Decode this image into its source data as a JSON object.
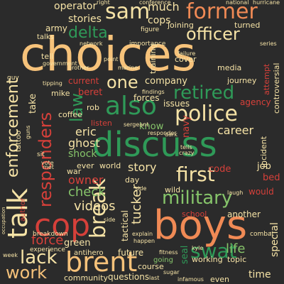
{
  "palette": {
    "background": "#2b2b2b",
    "cream": "#f6e3a6",
    "orange": "#f08a55",
    "red": "#d6403a",
    "green": "#2f9a58",
    "lightgreen": "#86c46a",
    "peach": "#f7b779"
  },
  "words": [
    {
      "text": "choices",
      "size": 66,
      "color": "#f6c27a"
    },
    {
      "text": "discuss",
      "size": 48,
      "color": "#2f9a58"
    },
    {
      "text": "boys",
      "size": 56,
      "color": "#f08a55"
    },
    {
      "text": "brent",
      "size": 38,
      "color": "#f6c27a"
    },
    {
      "text": "cop",
      "size": 44,
      "color": "#d6403a"
    },
    {
      "text": "talk",
      "size": 38,
      "color": "#f6e3a6"
    },
    {
      "text": "sam",
      "size": 30,
      "color": "#f6e3a6"
    },
    {
      "text": "former",
      "size": 30,
      "color": "#f08a55"
    },
    {
      "text": "also",
      "size": 36,
      "color": "#2f9a58"
    },
    {
      "text": "police",
      "size": 30,
      "color": "#f6e3a6"
    },
    {
      "text": "retired",
      "size": 26,
      "color": "#2f9a58"
    },
    {
      "text": "officer",
      "size": 24,
      "color": "#f6e3a6"
    },
    {
      "text": "military",
      "size": 26,
      "color": "#86c46a"
    },
    {
      "text": "first",
      "size": 28,
      "color": "#f6e3a6"
    },
    {
      "text": "break",
      "size": 30,
      "color": "#f6e3a6"
    },
    {
      "text": "swat",
      "size": 28,
      "color": "#2f9a58"
    },
    {
      "text": "delta",
      "size": 22,
      "color": "#2f9a58"
    },
    {
      "text": "enforcement",
      "size": 22,
      "color": "#f6e3a6"
    },
    {
      "text": "responders",
      "size": 24,
      "color": "#d6403a"
    },
    {
      "text": "one",
      "size": 24,
      "color": "#f6e3a6"
    },
    {
      "text": "lack",
      "size": 26,
      "color": "#f6e3a6"
    },
    {
      "text": "work",
      "size": 24,
      "color": "#f6c27a"
    },
    {
      "text": "law",
      "size": 24,
      "color": "#2f9a58"
    },
    {
      "text": "tucker",
      "size": 18,
      "color": "#f6e3a6"
    },
    {
      "text": "videos",
      "size": 18,
      "color": "#f6e3a6"
    },
    {
      "text": "check",
      "size": 18,
      "color": "#86c46a"
    },
    {
      "text": "force",
      "size": 18,
      "color": "#d6403a"
    },
    {
      "text": "owner",
      "size": 16,
      "color": "#d6403a"
    },
    {
      "text": "career",
      "size": 16,
      "color": "#f6e3a6"
    },
    {
      "text": "story",
      "size": 16,
      "color": "#f6e3a6"
    },
    {
      "text": "life",
      "size": 18,
      "color": "#86c46a"
    },
    {
      "text": "ghost",
      "size": 16,
      "color": "#f6e3a6"
    },
    {
      "text": "eric",
      "size": 16,
      "color": "#f6e3a6"
    },
    {
      "text": "much",
      "size": 16,
      "color": "#f6e3a6"
    },
    {
      "text": "cops",
      "size": 14,
      "color": "#f6e3a6"
    },
    {
      "text": "operator",
      "size": 14,
      "color": "#f6e3a6"
    },
    {
      "text": "stories",
      "size": 14,
      "color": "#f6e3a6"
    },
    {
      "text": "army",
      "size": 12,
      "color": "#f6e3a6"
    },
    {
      "text": "company",
      "size": 13,
      "color": "#f6e3a6"
    },
    {
      "text": "know",
      "size": 13,
      "color": "#86c46a"
    },
    {
      "text": "beret",
      "size": 13,
      "color": "#d6403a"
    },
    {
      "text": "current",
      "size": 12,
      "color": "#d6403a"
    },
    {
      "text": "shock",
      "size": 14,
      "color": "#86c46a"
    },
    {
      "text": "take",
      "size": 13,
      "color": "#f6e3a6"
    },
    {
      "text": "code",
      "size": 13,
      "color": "#d6403a"
    },
    {
      "text": "job",
      "size": 13,
      "color": "#f6e3a6"
    },
    {
      "text": "bed",
      "size": 13,
      "color": "#d6403a"
    },
    {
      "text": "would",
      "size": 12,
      "color": "#d6403a"
    },
    {
      "text": "another",
      "size": 12,
      "color": "#f6e3a6"
    },
    {
      "text": "special",
      "size": 14,
      "color": "#f6e3a6"
    },
    {
      "text": "time",
      "size": 14,
      "color": "#f6e3a6"
    },
    {
      "text": "seal",
      "size": 13,
      "color": "#2f9a58"
    },
    {
      "text": "green",
      "size": 13,
      "color": "#f6e3a6"
    },
    {
      "text": "tactical",
      "size": 12,
      "color": "#f6e3a6"
    },
    {
      "text": "future",
      "size": 12,
      "color": "#f6e3a6"
    },
    {
      "text": "questions",
      "size": 12,
      "color": "#f6e3a6"
    },
    {
      "text": "community",
      "size": 11,
      "color": "#f6e3a6"
    },
    {
      "text": "working",
      "size": 11,
      "color": "#f6e3a6"
    },
    {
      "text": "topic",
      "size": 11,
      "color": "#f6e3a6"
    },
    {
      "text": "navy",
      "size": 13,
      "color": "#d6403a"
    },
    {
      "text": "agency",
      "size": 12,
      "color": "#d6403a"
    },
    {
      "text": "forces",
      "size": 12,
      "color": "#f6e3a6"
    },
    {
      "text": "issues",
      "size": 12,
      "color": "#f6e3a6"
    },
    {
      "text": "journey",
      "size": 11,
      "color": "#f6e3a6"
    },
    {
      "text": "controversial",
      "size": 11,
      "color": "#f6e3a6"
    },
    {
      "text": "incident",
      "size": 11,
      "color": "#f6e3a6"
    },
    {
      "text": "attempt",
      "size": 11,
      "color": "#d6403a"
    },
    {
      "text": "media",
      "size": 11,
      "color": "#f6e3a6"
    },
    {
      "text": "cover",
      "size": 11,
      "color": "#f6e3a6"
    },
    {
      "text": "turned",
      "size": 11,
      "color": "#f6e3a6"
    },
    {
      "text": "joining",
      "size": 11,
      "color": "#f6e3a6"
    },
    {
      "text": "training",
      "size": 11,
      "color": "#f6e3a6"
    },
    {
      "text": "mike",
      "size": 11,
      "color": "#f6e3a6"
    },
    {
      "text": "rob",
      "size": 11,
      "color": "#f6e3a6"
    },
    {
      "text": "coffee",
      "size": 11,
      "color": "#f6e3a6"
    },
    {
      "text": "listen",
      "size": 11,
      "color": "#d6403a"
    },
    {
      "text": "tell",
      "size": 11,
      "color": "#f6e3a6"
    },
    {
      "text": "talks",
      "size": 10,
      "color": "#f6e3a6"
    },
    {
      "text": "war",
      "size": 11,
      "color": "#f6e3a6"
    },
    {
      "text": "world",
      "size": 11,
      "color": "#f6e3a6"
    },
    {
      "text": "day",
      "size": 11,
      "color": "#f6e3a6"
    },
    {
      "text": "ever",
      "size": 11,
      "color": "#f6e3a6"
    },
    {
      "text": "wild",
      "size": 11,
      "color": "#f6e3a6"
    },
    {
      "text": "school",
      "size": 11,
      "color": "#d6403a"
    },
    {
      "text": "course",
      "size": 11,
      "color": "#f6e3a6"
    },
    {
      "text": "antihero",
      "size": 10,
      "color": "#f6e3a6"
    },
    {
      "text": "experience",
      "size": 9,
      "color": "#f6e3a6"
    },
    {
      "text": "breakdown",
      "size": 9,
      "color": "#f6e3a6"
    },
    {
      "text": "author",
      "size": 10,
      "color": "#d6403a"
    },
    {
      "text": "tattoo",
      "size": 10,
      "color": "#f6e3a6"
    },
    {
      "text": "even",
      "size": 11,
      "color": "#f6e3a6"
    },
    {
      "text": "going",
      "size": 10,
      "color": "#86c46a"
    },
    {
      "text": "combat",
      "size": 9,
      "color": "#f6e3a6"
    },
    {
      "text": "importance",
      "size": 9,
      "color": "#f6e3a6"
    },
    {
      "text": "figure",
      "size": 9,
      "color": "#f6e3a6"
    },
    {
      "text": "conference",
      "size": 8,
      "color": "#f6e3a6"
    },
    {
      "text": "national",
      "size": 8,
      "color": "#f6e3a6"
    },
    {
      "text": "hurricane",
      "size": 8,
      "color": "#f6e3a6"
    },
    {
      "text": "network",
      "size": 8,
      "color": "#f6e3a6"
    },
    {
      "text": "government",
      "size": 8,
      "color": "#f6e3a6"
    },
    {
      "text": "failure",
      "size": 8,
      "color": "#f6e3a6"
    },
    {
      "text": "findings",
      "size": 8,
      "color": "#f6e3a6"
    },
    {
      "text": "marine",
      "size": 8,
      "color": "#f6e3a6"
    },
    {
      "text": "sergeant",
      "size": 8,
      "color": "#f6e3a6"
    },
    {
      "text": "responder",
      "size": 8,
      "color": "#f6e3a6"
    },
    {
      "text": "dark",
      "size": 8,
      "color": "#f6e3a6"
    },
    {
      "text": "tells",
      "size": 8,
      "color": "#f6e3a6"
    },
    {
      "text": "crazy",
      "size": 8,
      "color": "#f6e3a6"
    },
    {
      "text": "explain",
      "size": 8,
      "color": "#f6e3a6"
    },
    {
      "text": "happen",
      "size": 8,
      "color": "#f6e3a6"
    },
    {
      "text": "fitness",
      "size": 8,
      "color": "#f6e3a6"
    },
    {
      "text": "week",
      "size": 8,
      "color": "#f6e3a6"
    },
    {
      "text": "sugar",
      "size": 8,
      "color": "#f6e3a6"
    },
    {
      "text": "infamous",
      "size": 8,
      "color": "#f6e3a6"
    },
    {
      "text": "kyle",
      "size": 8,
      "color": "#f6e3a6"
    },
    {
      "text": "laugh",
      "size": 8,
      "color": "#f6e3a6"
    },
    {
      "text": "guns",
      "size": 8,
      "color": "#f6e3a6"
    },
    {
      "text": "point",
      "size": 8,
      "color": "#f6e3a6"
    },
    {
      "text": "tipping",
      "size": 8,
      "color": "#f6e3a6"
    },
    {
      "text": "brother",
      "size": 8,
      "color": "#f6e3a6"
    },
    {
      "text": "series",
      "size": 8,
      "color": "#f6e3a6"
    },
    {
      "text": "occupation",
      "size": 7,
      "color": "#f6e3a6"
    },
    {
      "text": "vote",
      "size": 8,
      "color": "#f6e3a6"
    },
    {
      "text": "sit",
      "size": 9,
      "color": "#f6e3a6"
    },
    {
      "text": "guy",
      "size": 9,
      "color": "#f6e3a6"
    },
    {
      "text": "met",
      "size": 8,
      "color": "#f6e3a6"
    },
    {
      "text": "last",
      "size": 8,
      "color": "#f6e3a6"
    },
    {
      "text": "side",
      "size": 8,
      "color": "#f6e3a6"
    },
    {
      "text": "right",
      "size": 8,
      "color": "#f6e3a6"
    },
    {
      "text": "side",
      "size": 8,
      "color": "#f6e3a6"
    }
  ]
}
